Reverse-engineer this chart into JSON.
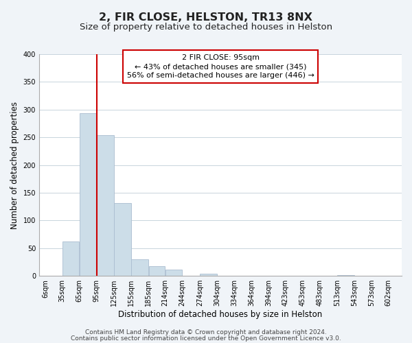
{
  "title": "2, FIR CLOSE, HELSTON, TR13 8NX",
  "subtitle": "Size of property relative to detached houses in Helston",
  "xlabel": "Distribution of detached houses by size in Helston",
  "ylabel": "Number of detached properties",
  "bar_left_edges": [
    6,
    35,
    65,
    95,
    125,
    155,
    185,
    214,
    244,
    274,
    304,
    334,
    364,
    394,
    423,
    453,
    483,
    513,
    543,
    573
  ],
  "bar_heights": [
    0,
    62,
    293,
    254,
    132,
    30,
    18,
    12,
    0,
    4,
    0,
    0,
    0,
    0,
    0,
    0,
    0,
    1,
    0,
    0
  ],
  "bar_widths": [
    29,
    30,
    30,
    30,
    30,
    30,
    29,
    30,
    30,
    30,
    30,
    30,
    30,
    29,
    30,
    30,
    30,
    30,
    30,
    29
  ],
  "bar_color": "#ccdde8",
  "bar_edgecolor": "#aabdd0",
  "vline_x": 95,
  "vline_color": "#cc0000",
  "ylim": [
    0,
    400
  ],
  "yticks": [
    0,
    50,
    100,
    150,
    200,
    250,
    300,
    350,
    400
  ],
  "xtick_labels": [
    "6sqm",
    "35sqm",
    "65sqm",
    "95sqm",
    "125sqm",
    "155sqm",
    "185sqm",
    "214sqm",
    "244sqm",
    "274sqm",
    "304sqm",
    "334sqm",
    "364sqm",
    "394sqm",
    "423sqm",
    "453sqm",
    "483sqm",
    "513sqm",
    "543sqm",
    "573sqm",
    "602sqm"
  ],
  "xtick_positions": [
    6,
    35,
    65,
    95,
    125,
    155,
    185,
    214,
    244,
    274,
    304,
    334,
    364,
    394,
    423,
    453,
    483,
    513,
    543,
    573,
    602
  ],
  "ann_line1": "2 FIR CLOSE: 95sqm",
  "ann_line2": "← 43% of detached houses are smaller (345)",
  "ann_line3": "56% of semi-detached houses are larger (446) →",
  "footer_line1": "Contains HM Land Registry data © Crown copyright and database right 2024.",
  "footer_line2": "Contains public sector information licensed under the Open Government Licence v3.0.",
  "background_color": "#f0f4f8",
  "plot_background_color": "#ffffff",
  "grid_color": "#c8d4dc",
  "title_fontsize": 11.5,
  "subtitle_fontsize": 9.5,
  "axis_label_fontsize": 8.5,
  "tick_fontsize": 7,
  "ann_fontsize": 8,
  "footer_fontsize": 6.5
}
